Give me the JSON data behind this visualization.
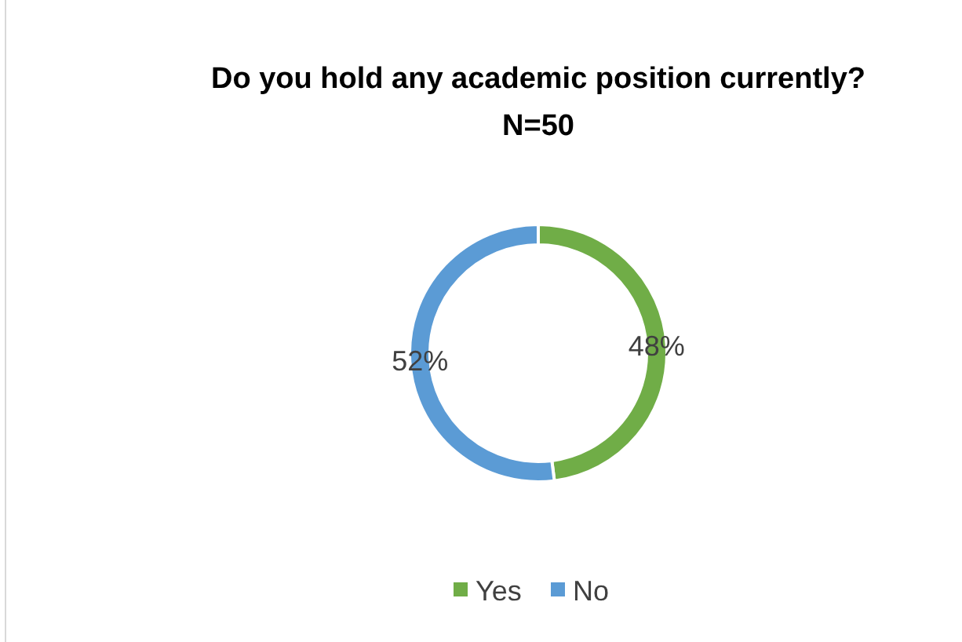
{
  "chart_data": {
    "type": "donut",
    "title": "Do you hold any academic position currently?",
    "subtitle": "N=50",
    "categories": [
      "Yes",
      "No"
    ],
    "values": [
      48,
      52
    ],
    "colors": [
      "#70ad47",
      "#5b9bd5"
    ],
    "value_labels": [
      "48%",
      "52%"
    ],
    "legend": "bottom"
  }
}
